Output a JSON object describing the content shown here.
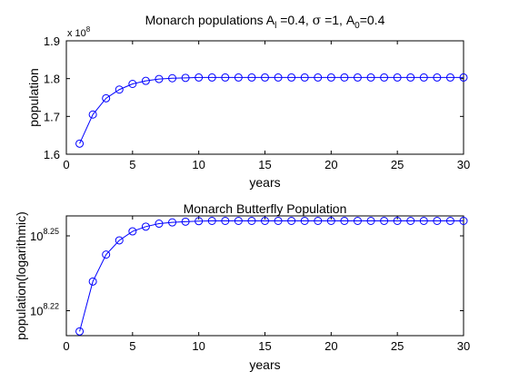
{
  "chart_data": [
    {
      "type": "line",
      "title": {
        "parts": [
          {
            "text": "Monarch populations A"
          },
          {
            "text": "l",
            "sub": true
          },
          {
            "text": " =0.4, "
          },
          {
            "text": "σ",
            "symbol": true
          },
          {
            "text": " =1, A"
          },
          {
            "text": "0",
            "sub": true
          },
          {
            "text": "=0.4"
          }
        ]
      },
      "xlabel": "years",
      "ylabel": "population",
      "xlim": [
        0,
        30
      ],
      "ylim": [
        1.6,
        1.9
      ],
      "y_scale_multiplier": {
        "base": "x 10",
        "exponent": "8"
      },
      "x_ticks": [
        0,
        5,
        10,
        15,
        20,
        25,
        30
      ],
      "y_ticks": [
        1.6,
        1.7,
        1.8,
        1.9
      ],
      "grid": false,
      "marker": "circle",
      "color": "#0000ff",
      "x": [
        1,
        2,
        3,
        4,
        5,
        6,
        7,
        8,
        9,
        10,
        11,
        12,
        13,
        14,
        15,
        16,
        17,
        18,
        19,
        20,
        21,
        22,
        23,
        24,
        25,
        26,
        27,
        28,
        29,
        30
      ],
      "y": [
        1.628,
        1.705,
        1.748,
        1.771,
        1.786,
        1.794,
        1.799,
        1.801,
        1.802,
        1.803,
        1.803,
        1.803,
        1.803,
        1.803,
        1.803,
        1.803,
        1.803,
        1.803,
        1.803,
        1.803,
        1.803,
        1.803,
        1.803,
        1.803,
        1.803,
        1.803,
        1.803,
        1.803,
        1.803,
        1.803
      ]
    },
    {
      "type": "line",
      "title": {
        "parts": [
          {
            "text": "Monarch Butterfly Population"
          }
        ]
      },
      "xlabel": "years",
      "ylabel": "population(logarithmic)",
      "xlim": [
        0,
        30
      ],
      "ylim": [
        8.21,
        8.258
      ],
      "y_scale": "log",
      "x_ticks": [
        0,
        5,
        10,
        15,
        20,
        25,
        30
      ],
      "y_ticks": [
        8.22,
        8.25
      ],
      "y_tick_base": "10",
      "grid": false,
      "marker": "circle",
      "color": "#0000ff",
      "x": [
        1,
        2,
        3,
        4,
        5,
        6,
        7,
        8,
        9,
        10,
        11,
        12,
        13,
        14,
        15,
        16,
        17,
        18,
        19,
        20,
        21,
        22,
        23,
        24,
        25,
        26,
        27,
        28,
        29,
        30
      ],
      "y": [
        8.2117,
        8.2317,
        8.2425,
        8.2482,
        8.2518,
        8.2537,
        8.2549,
        8.2554,
        8.2557,
        8.2559,
        8.256,
        8.256,
        8.256,
        8.256,
        8.256,
        8.256,
        8.256,
        8.256,
        8.256,
        8.256,
        8.256,
        8.256,
        8.256,
        8.256,
        8.256,
        8.256,
        8.256,
        8.256,
        8.256,
        8.256
      ]
    }
  ]
}
